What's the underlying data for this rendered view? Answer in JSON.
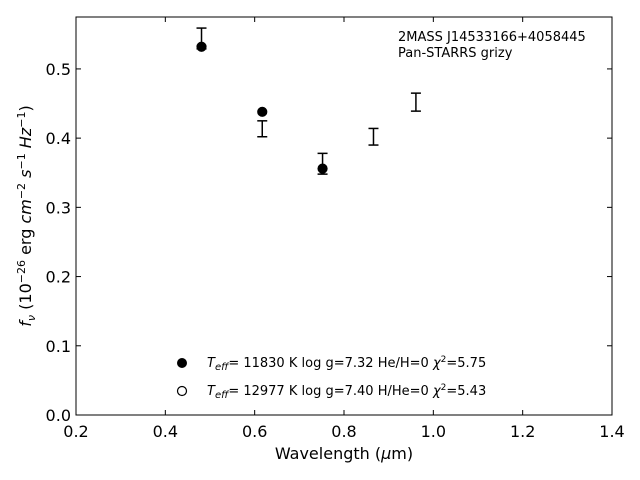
{
  "chart_data": {
    "type": "scatter",
    "annotation_lines": [
      "2MASS J14533166+4058445",
      "Pan-STARRS grizy"
    ],
    "xlabel": "Wavelength (μm)",
    "ylabel": "f_ν (10^-26 erg cm^-2 s^-1 Hz^-1)",
    "xlim": [
      0.2,
      1.4
    ],
    "ylim": [
      0.0,
      0.575
    ],
    "xticks": [
      0.2,
      0.4,
      0.6,
      0.8,
      1.0,
      1.2,
      1.4
    ],
    "xtick_labels": [
      "0.2",
      "0.4",
      "0.6",
      "0.8",
      "1.0",
      "1.2",
      "1.4"
    ],
    "yticks": [
      0.0,
      0.1,
      0.2,
      0.3,
      0.4,
      0.5
    ],
    "ytick_labels": [
      "0.0",
      "0.1",
      "0.2",
      "0.3",
      "0.4",
      "0.5"
    ],
    "grid": false,
    "legend_placement": "lower-center",
    "observed": {
      "x": [
        0.481,
        0.617,
        0.752,
        0.866,
        0.961
      ],
      "y_low": [
        0.529,
        0.402,
        0.348,
        0.39,
        0.439
      ],
      "y_high": [
        0.559,
        0.425,
        0.378,
        0.414,
        0.465
      ]
    },
    "series": [
      {
        "legend_text": {
          "teff_value": "= 11830 K",
          "logg": "log g=7.32",
          "comp": "He/H=0",
          "chi2_value": "=5.75"
        },
        "marker": "filled-circle",
        "x": [
          0.481,
          0.617,
          0.752
        ],
        "y": [
          0.532,
          0.438,
          0.356
        ]
      },
      {
        "legend_text": {
          "teff_value": "= 12977 K",
          "logg": "log g=7.40",
          "comp": "H/He=0",
          "chi2_value": "=5.43"
        },
        "marker": "open-circle",
        "x": [],
        "y": []
      }
    ]
  }
}
